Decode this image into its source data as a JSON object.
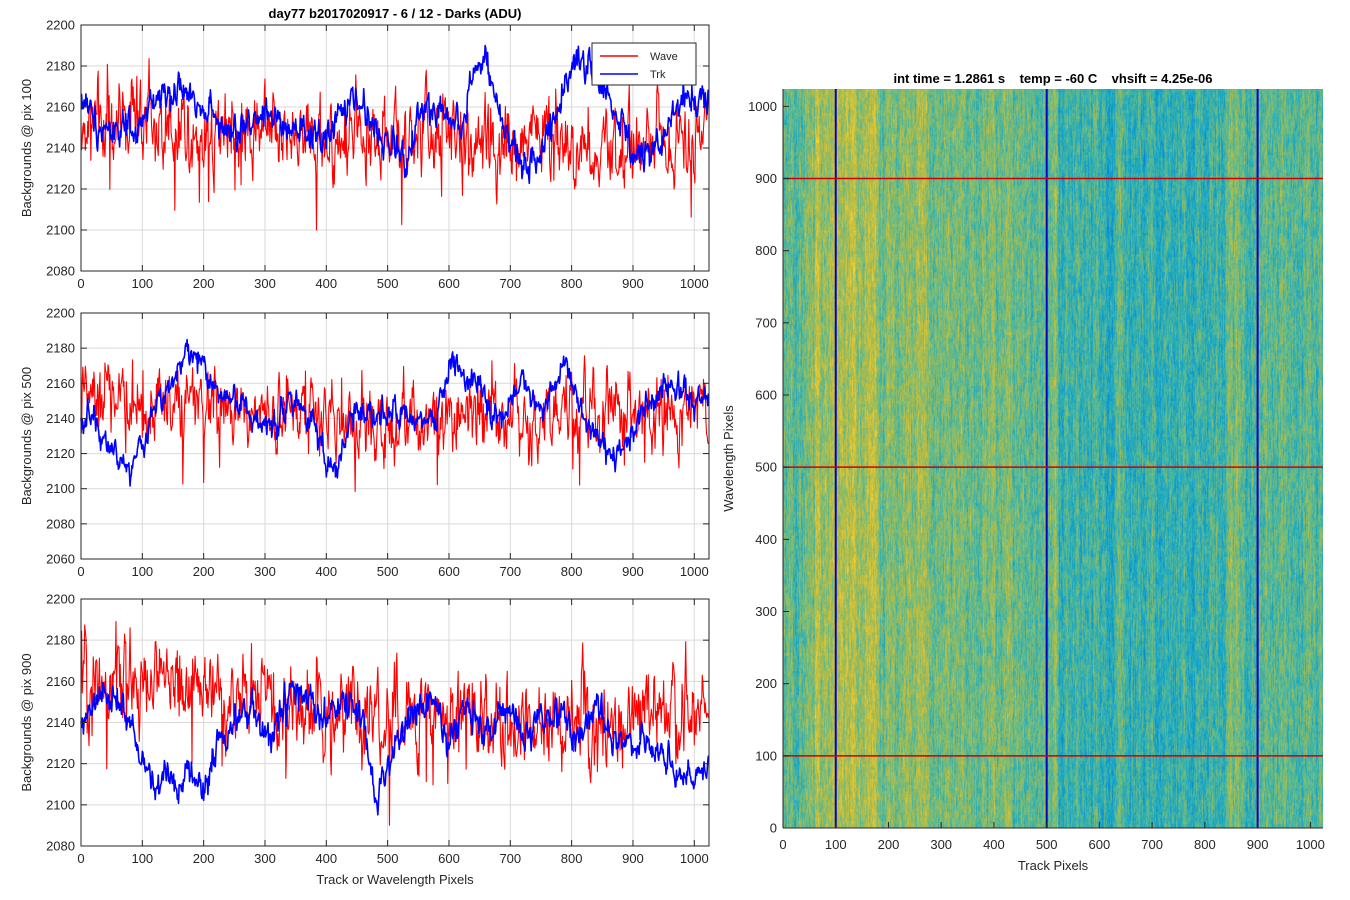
{
  "figure_title": "day77 b2017020917 - 6 / 12 - Darks (ADU)",
  "colors": {
    "wave": "#ff0000",
    "trk": "#0000ff",
    "grid": "#d9d9d9",
    "axis": "#262626"
  },
  "legend": {
    "entries": [
      "Wave",
      "Trk"
    ],
    "location": "top-right of first panel"
  },
  "chart_data": [
    {
      "type": "line",
      "panel": "pix 100",
      "title": "day77 b2017020917 - 6 / 12 - Darks (ADU)",
      "xlabel": "",
      "ylabel": "Backgrounds @ pix 100",
      "xlim": [
        0,
        1024
      ],
      "ylim": [
        2080,
        2200
      ],
      "xticks": [
        0,
        100,
        200,
        300,
        400,
        500,
        600,
        700,
        800,
        900,
        1000
      ],
      "yticks": [
        2080,
        2100,
        2120,
        2140,
        2160,
        2180,
        2200
      ],
      "grid": true,
      "series": [
        {
          "name": "Wave",
          "color": "#ff0000",
          "mean": 2148,
          "noise": 9,
          "spikes": 14,
          "knots_x": [
            0,
            100,
            200,
            300,
            400,
            500,
            600,
            700,
            800,
            900,
            1024
          ],
          "knots_y": [
            2152,
            2155,
            2150,
            2147,
            2147,
            2145,
            2146,
            2143,
            2144,
            2140,
            2145
          ]
        },
        {
          "name": "Trk",
          "color": "#0000ff",
          "mean": 2155,
          "noise": 4,
          "spikes": 0,
          "knots_x": [
            0,
            30,
            60,
            90,
            120,
            150,
            180,
            210,
            240,
            270,
            300,
            330,
            360,
            400,
            430,
            450,
            480,
            500,
            530,
            560,
            590,
            620,
            640,
            660,
            690,
            720,
            750,
            780,
            800,
            830,
            860,
            900,
            940,
            980,
            1024
          ],
          "knots_y": [
            2165,
            2150,
            2150,
            2145,
            2165,
            2168,
            2165,
            2160,
            2145,
            2150,
            2160,
            2148,
            2145,
            2145,
            2160,
            2163,
            2150,
            2142,
            2135,
            2160,
            2158,
            2150,
            2180,
            2180,
            2148,
            2130,
            2140,
            2160,
            2185,
            2180,
            2165,
            2135,
            2140,
            2165,
            2165
          ]
        }
      ]
    },
    {
      "type": "line",
      "panel": "pix 500",
      "title": "",
      "xlabel": "",
      "ylabel": "Backgrounds @ pix 500",
      "xlim": [
        0,
        1024
      ],
      "ylim": [
        2060,
        2200
      ],
      "xticks": [
        0,
        100,
        200,
        300,
        400,
        500,
        600,
        700,
        800,
        900,
        1000
      ],
      "yticks": [
        2060,
        2080,
        2100,
        2120,
        2140,
        2160,
        2180,
        2200
      ],
      "grid": true,
      "series": [
        {
          "name": "Wave",
          "color": "#ff0000",
          "mean": 2145,
          "noise": 9,
          "spikes": 12,
          "knots_x": [
            0,
            100,
            200,
            300,
            400,
            500,
            600,
            700,
            800,
            900,
            1024
          ],
          "knots_y": [
            2152,
            2150,
            2148,
            2145,
            2143,
            2138,
            2142,
            2140,
            2140,
            2140,
            2142
          ]
        },
        {
          "name": "Trk",
          "color": "#0000ff",
          "mean": 2148,
          "noise": 4,
          "spikes": 0,
          "knots_x": [
            0,
            20,
            40,
            60,
            80,
            100,
            120,
            150,
            180,
            200,
            220,
            260,
            300,
            340,
            380,
            400,
            420,
            440,
            470,
            500,
            540,
            580,
            600,
            620,
            650,
            680,
            720,
            750,
            790,
            820,
            850,
            870,
            900,
            950,
            1000,
            1024
          ],
          "knots_y": [
            2140,
            2140,
            2130,
            2118,
            2110,
            2125,
            2145,
            2165,
            2178,
            2170,
            2155,
            2150,
            2133,
            2150,
            2140,
            2115,
            2110,
            2140,
            2145,
            2145,
            2135,
            2140,
            2170,
            2168,
            2155,
            2140,
            2160,
            2145,
            2175,
            2140,
            2125,
            2115,
            2135,
            2160,
            2150,
            2155
          ]
        }
      ]
    },
    {
      "type": "line",
      "panel": "pix 900",
      "title": "",
      "xlabel": "Track or Wavelength Pixels",
      "ylabel": "Backgrounds @ pix 900",
      "xlim": [
        0,
        1024
      ],
      "ylim": [
        2080,
        2200
      ],
      "xticks": [
        0,
        100,
        200,
        300,
        400,
        500,
        600,
        700,
        800,
        900,
        1000
      ],
      "yticks": [
        2080,
        2100,
        2120,
        2140,
        2160,
        2180,
        2200
      ],
      "grid": true,
      "series": [
        {
          "name": "Wave",
          "color": "#ff0000",
          "mean": 2150,
          "noise": 9,
          "spikes": 12,
          "knots_x": [
            0,
            100,
            150,
            200,
            300,
            400,
            500,
            600,
            700,
            800,
            900,
            1024
          ],
          "knots_y": [
            2158,
            2158,
            2162,
            2155,
            2150,
            2145,
            2140,
            2143,
            2140,
            2140,
            2142,
            2145
          ]
        },
        {
          "name": "Trk",
          "color": "#0000ff",
          "mean": 2135,
          "noise": 4,
          "spikes": 0,
          "knots_x": [
            0,
            20,
            40,
            60,
            80,
            100,
            120,
            140,
            160,
            180,
            200,
            220,
            250,
            280,
            310,
            340,
            370,
            400,
            430,
            460,
            480,
            510,
            540,
            570,
            600,
            630,
            660,
            690,
            720,
            750,
            780,
            810,
            840,
            870,
            900,
            930,
            960,
            990,
            1024
          ],
          "knots_y": [
            2135,
            2148,
            2152,
            2150,
            2140,
            2120,
            2110,
            2115,
            2110,
            2118,
            2105,
            2130,
            2140,
            2145,
            2130,
            2155,
            2150,
            2140,
            2150,
            2140,
            2105,
            2125,
            2145,
            2150,
            2130,
            2150,
            2135,
            2145,
            2135,
            2140,
            2145,
            2130,
            2150,
            2135,
            2130,
            2130,
            2120,
            2110,
            2120
          ]
        }
      ]
    },
    {
      "type": "heatmap",
      "title": "int time = 1.2861 s    temp = -60 C    vhsift = 4.25e-06",
      "xlabel": "Track Pixels",
      "ylabel": "Wavelength Pixels",
      "xlim": [
        0,
        1024
      ],
      "ylim": [
        0,
        1024
      ],
      "xticks": [
        0,
        100,
        200,
        300,
        400,
        500,
        600,
        700,
        800,
        900,
        1000
      ],
      "yticks": [
        0,
        100,
        200,
        300,
        400,
        500,
        600,
        700,
        800,
        900,
        1000
      ],
      "colormap": "parula",
      "pattern": "vertical streaks, warmer (yellow) near track 100-150, cooler (cyan) near track 550-800",
      "marker_lines_vertical": {
        "color": "#0000c8",
        "x": [
          100,
          500,
          900
        ]
      },
      "marker_lines_horizontal": {
        "color": "#d00000",
        "y": [
          100,
          500,
          900
        ]
      }
    }
  ]
}
